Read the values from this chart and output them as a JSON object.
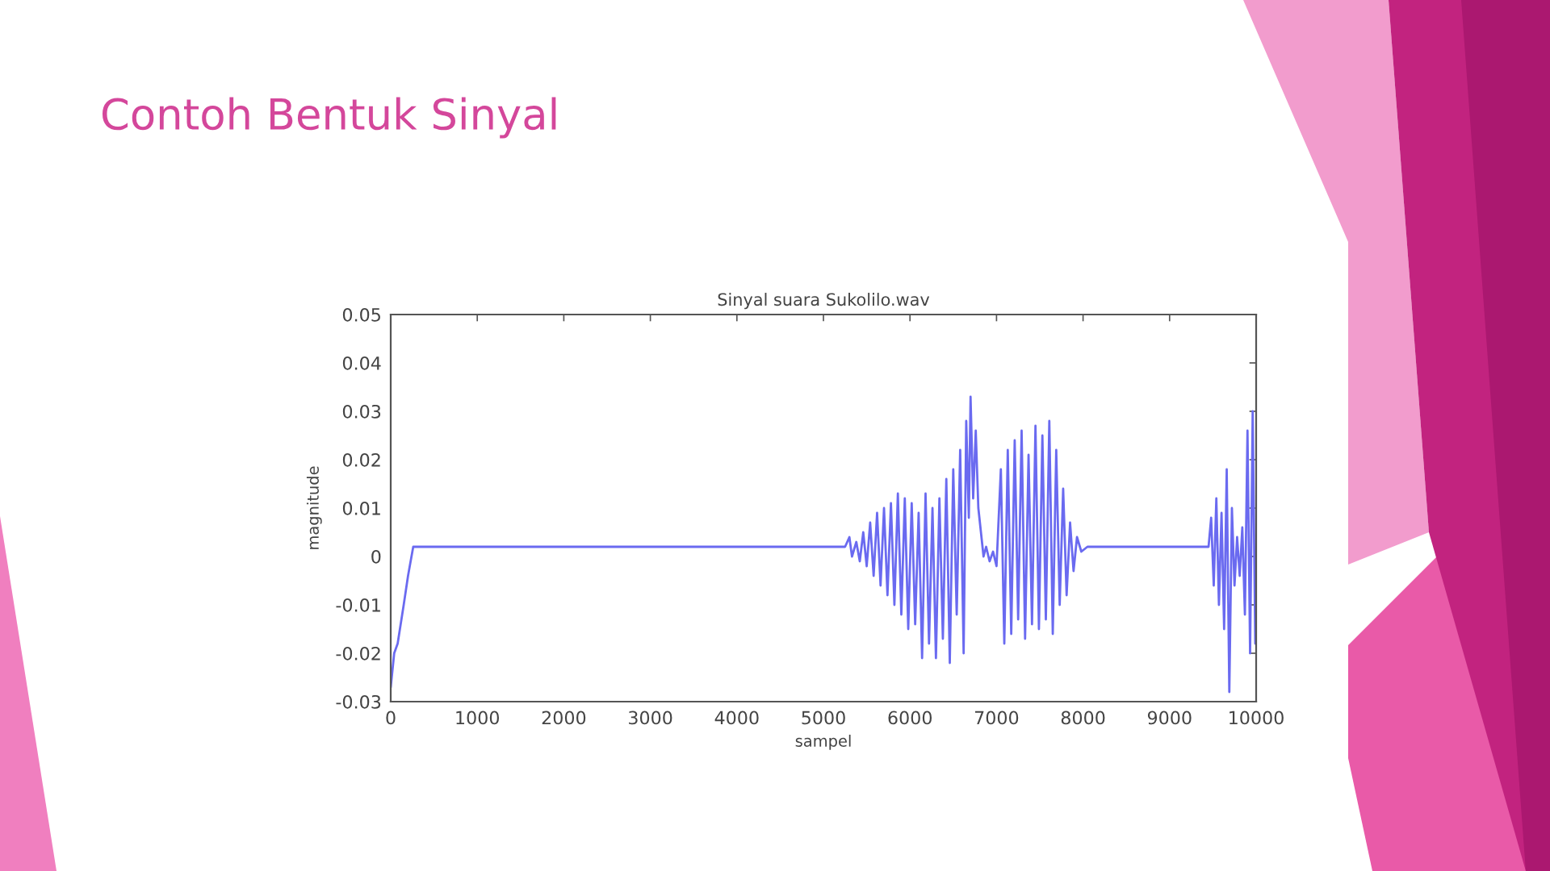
{
  "chart_data": {
    "type": "line",
    "title": "Contoh Bentuk Sinyal",
    "subtitle": "Sinyal suara Sukolilo.wav",
    "xlabel": "sampel",
    "ylabel": "magnitude",
    "x": [
      0,
      40,
      80,
      150,
      200,
      260,
      1000,
      2000,
      3000,
      4000,
      5000,
      5250,
      5300,
      5330,
      5380,
      5420,
      5460,
      5500,
      5540,
      5580,
      5620,
      5660,
      5700,
      5740,
      5780,
      5820,
      5860,
      5900,
      5940,
      5980,
      6020,
      6060,
      6100,
      6140,
      6180,
      6220,
      6260,
      6300,
      6340,
      6380,
      6420,
      6460,
      6500,
      6540,
      6580,
      6620,
      6650,
      6680,
      6700,
      6730,
      6760,
      6790,
      6820,
      6850,
      6880,
      6920,
      6960,
      7000,
      7050,
      7090,
      7130,
      7170,
      7210,
      7250,
      7290,
      7330,
      7370,
      7410,
      7450,
      7490,
      7530,
      7570,
      7610,
      7650,
      7690,
      7730,
      7770,
      7810,
      7850,
      7890,
      7930,
      7980,
      8050,
      8500,
      9000,
      9450,
      9480,
      9510,
      9540,
      9570,
      9600,
      9630,
      9660,
      9690,
      9720,
      9750,
      9780,
      9810,
      9840,
      9870,
      9900,
      9930,
      9960,
      9990,
      10000
    ],
    "series": [
      {
        "color": "#6a6af0",
        "values": [
          -0.027,
          -0.02,
          -0.018,
          -0.01,
          -0.004,
          0.002,
          0.002,
          0.002,
          0.002,
          0.002,
          0.002,
          0.002,
          0.004,
          0.0,
          0.003,
          -0.001,
          0.005,
          -0.002,
          0.007,
          -0.004,
          0.009,
          -0.006,
          0.01,
          -0.008,
          0.011,
          -0.01,
          0.013,
          -0.012,
          0.012,
          -0.015,
          0.011,
          -0.014,
          0.009,
          -0.021,
          0.013,
          -0.018,
          0.01,
          -0.021,
          0.012,
          -0.017,
          0.016,
          -0.022,
          0.018,
          -0.012,
          0.022,
          -0.02,
          0.028,
          0.008,
          0.033,
          0.012,
          0.026,
          0.01,
          0.005,
          0.0,
          0.002,
          -0.001,
          0.001,
          -0.002,
          0.018,
          -0.018,
          0.022,
          -0.016,
          0.024,
          -0.013,
          0.026,
          -0.017,
          0.021,
          -0.014,
          0.027,
          -0.015,
          0.025,
          -0.013,
          0.028,
          -0.016,
          0.022,
          -0.01,
          0.014,
          -0.008,
          0.007,
          -0.003,
          0.004,
          0.001,
          0.002,
          0.002,
          0.002,
          0.002,
          0.008,
          -0.006,
          0.012,
          -0.01,
          0.009,
          -0.015,
          0.018,
          -0.028,
          0.01,
          -0.006,
          0.004,
          -0.004,
          0.006,
          -0.012,
          0.026,
          -0.02,
          0.03,
          -0.018,
          0.0
        ]
      }
    ],
    "xlim": [
      0,
      10000
    ],
    "xticks": [
      0,
      1000,
      2000,
      3000,
      4000,
      5000,
      6000,
      7000,
      8000,
      9000,
      10000
    ],
    "ylim": [
      -0.03,
      0.05
    ],
    "yticks": [
      -0.03,
      -0.02,
      -0.01,
      0,
      0.01,
      0.02,
      0.03,
      0.04,
      0.05
    ]
  }
}
